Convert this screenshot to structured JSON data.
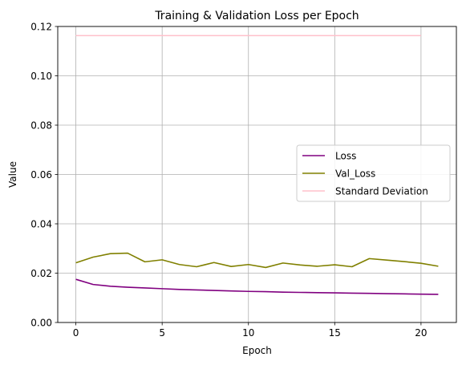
{
  "chart_data": {
    "type": "line",
    "title": "Training & Validation Loss per Epoch",
    "xlabel": "Epoch",
    "ylabel": "Value",
    "xlim": [
      -1.05,
      22.05
    ],
    "ylim": [
      0,
      0.12
    ],
    "xticks": [
      0,
      5,
      10,
      15,
      20
    ],
    "yticks": [
      0.0,
      0.02,
      0.04,
      0.06,
      0.08,
      0.1,
      0.12
    ],
    "ytick_labels": [
      "0.00",
      "0.02",
      "0.04",
      "0.06",
      "0.08",
      "0.10",
      "0.12"
    ],
    "grid": true,
    "legend_position": "center-right",
    "series": [
      {
        "name": "Loss",
        "color": "#800080",
        "x": [
          0,
          1,
          2,
          3,
          4,
          5,
          6,
          7,
          8,
          9,
          10,
          11,
          12,
          13,
          14,
          15,
          16,
          17,
          18,
          19,
          20,
          21
        ],
        "values": [
          0.0175,
          0.0154,
          0.0147,
          0.0143,
          0.014,
          0.0137,
          0.0134,
          0.0132,
          0.013,
          0.0128,
          0.0126,
          0.0125,
          0.0123,
          0.0122,
          0.0121,
          0.012,
          0.0119,
          0.0118,
          0.0117,
          0.0116,
          0.0115,
          0.0114
        ]
      },
      {
        "name": "Val_Loss",
        "color": "#808000",
        "x": [
          0,
          1,
          2,
          3,
          4,
          5,
          6,
          7,
          8,
          9,
          10,
          11,
          12,
          13,
          14,
          15,
          16,
          17,
          18,
          19,
          20,
          21
        ],
        "values": [
          0.0242,
          0.0265,
          0.0279,
          0.0281,
          0.0246,
          0.0254,
          0.0235,
          0.0226,
          0.0243,
          0.0227,
          0.0235,
          0.0223,
          0.0241,
          0.0233,
          0.0228,
          0.0234,
          0.0226,
          0.0259,
          0.0253,
          0.0247,
          0.024,
          0.0228
        ]
      },
      {
        "name": "Standard Deviation",
        "color": "#ffc0cb",
        "x": [
          0,
          20
        ],
        "values": [
          0.1163,
          0.1163
        ]
      }
    ]
  }
}
